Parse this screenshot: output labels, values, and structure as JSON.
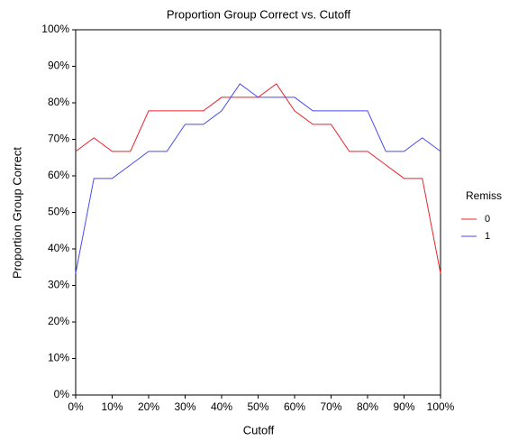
{
  "chart_data": {
    "type": "line",
    "title": "Proportion Group Correct vs. Cutoff",
    "x_label": "Cutoff",
    "y_label": "Proportion Group Correct",
    "legend_title": "Remiss",
    "legend": "right",
    "x": [
      0,
      5,
      10,
      15,
      20,
      25,
      30,
      35,
      40,
      45,
      50,
      55,
      60,
      65,
      70,
      75,
      80,
      85,
      90,
      95,
      100
    ],
    "series": [
      {
        "name": "0",
        "color": "#e8232b",
        "values": [
          66.7,
          70.4,
          66.7,
          66.7,
          77.8,
          77.8,
          77.8,
          77.8,
          81.5,
          81.5,
          81.5,
          85.2,
          77.8,
          74.1,
          74.1,
          66.7,
          66.7,
          63,
          59.3,
          59.3,
          33.3
        ]
      },
      {
        "name": "1",
        "color": "#4a4af2",
        "values": [
          33.3,
          59.3,
          59.3,
          63,
          66.7,
          66.7,
          74.1,
          74.1,
          77.8,
          85.2,
          81.5,
          81.5,
          81.5,
          77.8,
          77.8,
          77.8,
          77.8,
          66.7,
          66.7,
          70.4,
          66.7
        ]
      }
    ],
    "xlim": [
      0,
      100
    ],
    "xticks": [
      {
        "value": 0,
        "label": "0%"
      },
      {
        "value": 10,
        "label": "10%"
      },
      {
        "value": 20,
        "label": "20%"
      },
      {
        "value": 30,
        "label": "30%"
      },
      {
        "value": 40,
        "label": "40%"
      },
      {
        "value": 50,
        "label": "50%"
      },
      {
        "value": 60,
        "label": "60%"
      },
      {
        "value": 70,
        "label": "70%"
      },
      {
        "value": 80,
        "label": "80%"
      },
      {
        "value": 90,
        "label": "90%"
      },
      {
        "value": 100,
        "label": "100%"
      }
    ],
    "ylim": [
      0,
      100
    ],
    "yticks": [
      {
        "value": 0,
        "label": "0%"
      },
      {
        "value": 10,
        "label": "10%"
      },
      {
        "value": 20,
        "label": "20%"
      },
      {
        "value": 30,
        "label": "30%"
      },
      {
        "value": 40,
        "label": "40%"
      },
      {
        "value": 50,
        "label": "50%"
      },
      {
        "value": 60,
        "label": "60%"
      },
      {
        "value": 70,
        "label": "70%"
      },
      {
        "value": 80,
        "label": "80%"
      },
      {
        "value": 90,
        "label": "90%"
      },
      {
        "value": 100,
        "label": "100%"
      }
    ],
    "grid": false
  }
}
